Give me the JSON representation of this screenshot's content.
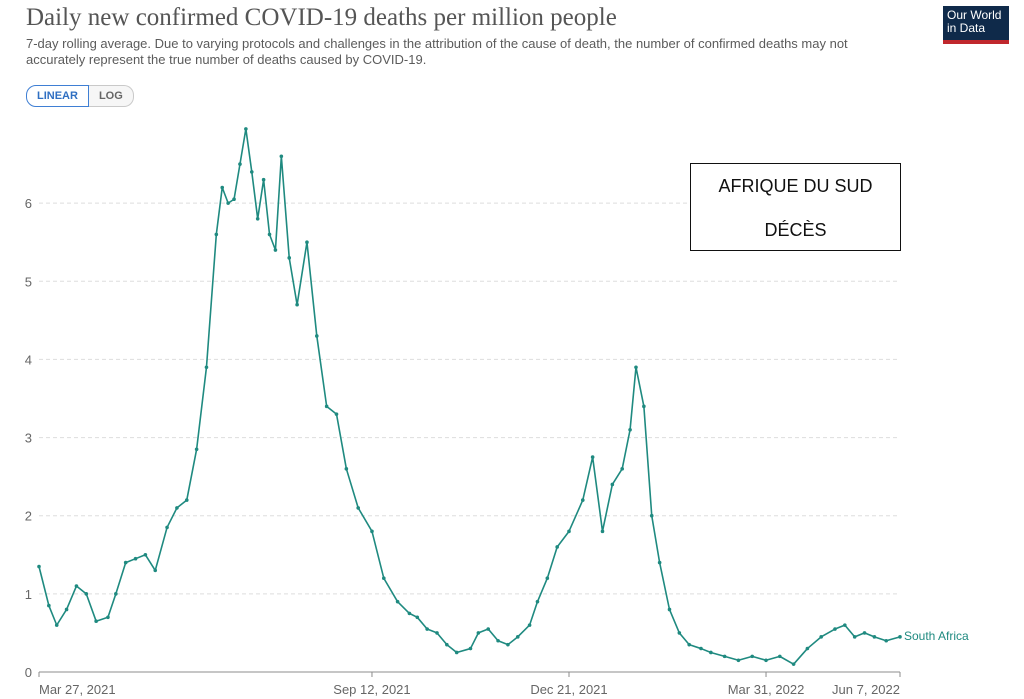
{
  "header": {
    "title": "Daily new confirmed COVID-19 deaths per million people",
    "subtitle": "7-day rolling average. Due to varying protocols and challenges in the attribution of the cause of death, the number of confirmed deaths may not accurately represent the true number of deaths caused by COVID-19.",
    "logo_line1": "Our World",
    "logo_line2": "in Data"
  },
  "controls": {
    "linear_label": "LINEAR",
    "log_label": "LOG",
    "active": "linear"
  },
  "annotation": {
    "line1": "AFRIQUE DU SUD",
    "line2": "DÉCÈS"
  },
  "colors": {
    "series": "#1f8a80",
    "grid": "#dddddd",
    "axis": "#8c8c8c"
  },
  "chart_data": {
    "type": "line",
    "xlabel": "",
    "ylabel": "",
    "ylim": [
      0,
      7
    ],
    "y_ticks": [
      0,
      1,
      2,
      3,
      4,
      5,
      6
    ],
    "x_range": [
      "2021-03-27",
      "2022-06-07"
    ],
    "x_tick_labels": [
      "Mar 27, 2021",
      "Sep 12, 2021",
      "Dec 21, 2021",
      "Mar 31, 2022",
      "Jun 7, 2022"
    ],
    "grid": "horizontal dashed",
    "series": [
      {
        "name": "South Africa",
        "x": [
          "2021-03-27",
          "2021-04-01",
          "2021-04-05",
          "2021-04-10",
          "2021-04-15",
          "2021-04-20",
          "2021-04-25",
          "2021-05-01",
          "2021-05-05",
          "2021-05-10",
          "2021-05-15",
          "2021-05-20",
          "2021-05-25",
          "2021-05-31",
          "2021-06-05",
          "2021-06-10",
          "2021-06-15",
          "2021-06-20",
          "2021-06-25",
          "2021-06-28",
          "2021-07-01",
          "2021-07-04",
          "2021-07-07",
          "2021-07-10",
          "2021-07-13",
          "2021-07-16",
          "2021-07-19",
          "2021-07-22",
          "2021-07-25",
          "2021-07-28",
          "2021-08-01",
          "2021-08-05",
          "2021-08-10",
          "2021-08-15",
          "2021-08-20",
          "2021-08-25",
          "2021-08-30",
          "2021-09-05",
          "2021-09-12",
          "2021-09-18",
          "2021-09-25",
          "2021-10-01",
          "2021-10-05",
          "2021-10-10",
          "2021-10-15",
          "2021-10-20",
          "2021-10-25",
          "2021-11-01",
          "2021-11-05",
          "2021-11-10",
          "2021-11-15",
          "2021-11-20",
          "2021-11-25",
          "2021-12-01",
          "2021-12-05",
          "2021-12-10",
          "2021-12-15",
          "2021-12-21",
          "2021-12-28",
          "2022-01-02",
          "2022-01-07",
          "2022-01-12",
          "2022-01-17",
          "2022-01-21",
          "2022-01-24",
          "2022-01-28",
          "2022-02-01",
          "2022-02-05",
          "2022-02-10",
          "2022-02-15",
          "2022-02-20",
          "2022-02-26",
          "2022-03-03",
          "2022-03-10",
          "2022-03-17",
          "2022-03-24",
          "2022-03-31",
          "2022-04-07",
          "2022-04-14",
          "2022-04-21",
          "2022-04-28",
          "2022-05-05",
          "2022-05-10",
          "2022-05-15",
          "2022-05-20",
          "2022-05-25",
          "2022-05-31",
          "2022-06-07"
        ],
        "y": [
          1.35,
          0.85,
          0.6,
          0.8,
          1.1,
          1.0,
          0.65,
          0.7,
          1.0,
          1.4,
          1.45,
          1.5,
          1.3,
          1.85,
          2.1,
          2.2,
          2.85,
          3.9,
          5.6,
          6.2,
          6.0,
          6.05,
          6.5,
          6.95,
          6.4,
          5.8,
          6.3,
          5.6,
          5.4,
          6.6,
          5.3,
          4.7,
          5.5,
          4.3,
          3.4,
          3.3,
          2.6,
          2.1,
          1.8,
          1.2,
          0.9,
          0.75,
          0.7,
          0.55,
          0.5,
          0.35,
          0.25,
          0.3,
          0.5,
          0.55,
          0.4,
          0.35,
          0.45,
          0.6,
          0.9,
          1.2,
          1.6,
          1.8,
          2.2,
          2.75,
          1.8,
          2.4,
          2.6,
          3.1,
          3.9,
          3.4,
          2.0,
          1.4,
          0.8,
          0.5,
          0.35,
          0.3,
          0.25,
          0.2,
          0.15,
          0.2,
          0.15,
          0.2,
          0.1,
          0.3,
          0.45,
          0.55,
          0.6,
          0.45,
          0.5,
          0.45,
          0.4,
          0.45
        ]
      }
    ],
    "end_label": "South Africa"
  }
}
